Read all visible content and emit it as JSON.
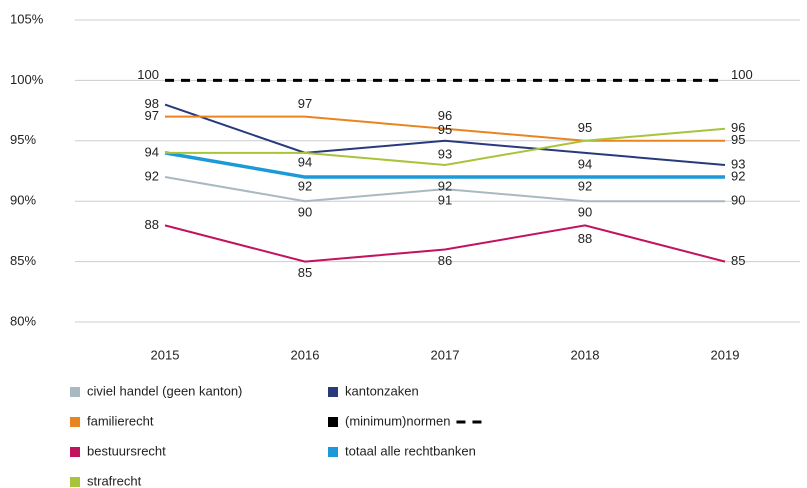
{
  "chart_data": {
    "type": "line",
    "x": [
      "2015",
      "2016",
      "2017",
      "2018",
      "2019"
    ],
    "ylim": [
      80,
      105
    ],
    "yticks": [
      {
        "value": 80,
        "label": "80%"
      },
      {
        "value": 85,
        "label": "85%"
      },
      {
        "value": 90,
        "label": "90%"
      },
      {
        "value": 95,
        "label": "95%"
      },
      {
        "value": 100,
        "label": "100%"
      },
      {
        "value": 105,
        "label": "105%"
      }
    ],
    "grid": true,
    "series": [
      {
        "name": "civiel handel (geen kanton)",
        "color": "#a9b9c2",
        "values": [
          92,
          90,
          91,
          90,
          90
        ]
      },
      {
        "name": "kantonzaken",
        "color": "#283a7d",
        "values": [
          98,
          94,
          95,
          94,
          93
        ]
      },
      {
        "name": "familierecht",
        "color": "#ea8420",
        "values": [
          97,
          97,
          96,
          95,
          95
        ]
      },
      {
        "name": "(minimum)normen",
        "color": "#000000",
        "dashed": true,
        "values": [
          100,
          100,
          100,
          100,
          100
        ]
      },
      {
        "name": "bestuursrecht",
        "color": "#c1135f",
        "values": [
          88,
          85,
          86,
          88,
          85
        ]
      },
      {
        "name": "totaal alle rechtbanken",
        "color": "#1b9ad7",
        "values": [
          94,
          92,
          92,
          92,
          92
        ]
      },
      {
        "name": "strafrecht",
        "color": "#a8c43b",
        "values": [
          94,
          94,
          93,
          95,
          96
        ]
      }
    ]
  }
}
